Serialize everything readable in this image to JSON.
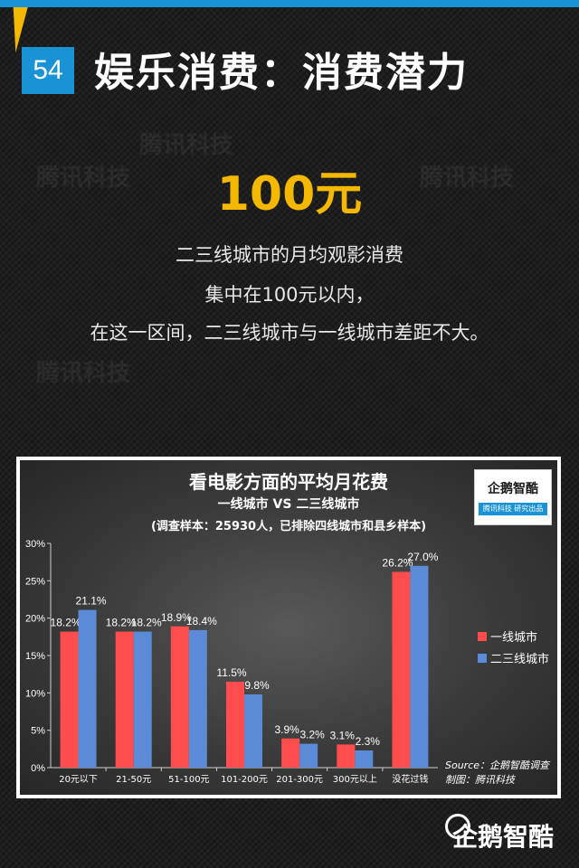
{
  "header": {
    "number": "54",
    "title": "娱乐消费：消费潜力"
  },
  "watermark": "腾讯科技",
  "highlight": "100元",
  "description": [
    "二三线城市的月均观影消费",
    "集中在100元以内，",
    "在这一区间，二三线城市与一线城市差距不大。"
  ],
  "logo": {
    "name": "企鹅智酷",
    "sub": "腾讯科技 研究出品"
  },
  "footer_logo": "企鹅智酷",
  "colors": {
    "accent_blue": "#1a93d6",
    "accent_yellow": "#f4b800",
    "series1": "#ff4d4d",
    "series2": "#5b8bd6"
  },
  "chart_data": {
    "type": "bar",
    "title": "看电影方面的平均月花费",
    "subtitle": "一线城市 VS 二三线城市",
    "note": "(调查样本：25930人，已排除四线城市和县乡样本)",
    "categories": [
      "20元以下",
      "21-50元",
      "51-100元",
      "101-200元",
      "201-300元",
      "300元以上",
      "没花过钱"
    ],
    "series": [
      {
        "name": "一线城市",
        "color": "#ff4d4d",
        "values": [
          18.2,
          18.2,
          18.9,
          11.5,
          3.9,
          3.1,
          26.2
        ],
        "labels": [
          "18.2%",
          "18.2%",
          "18.9%",
          "11.5%",
          "3.9%",
          "3.1%",
          "26.2%"
        ]
      },
      {
        "name": "二三线城市",
        "color": "#5b8bd6",
        "values": [
          21.1,
          18.2,
          18.4,
          9.8,
          3.2,
          2.3,
          27.0
        ],
        "labels": [
          "21.1%",
          "18.2%",
          "18.4%",
          "9.8%",
          "3.2%",
          "2.3%",
          "27.0%"
        ]
      }
    ],
    "ylim": [
      0,
      30
    ],
    "yticks": [
      "0%",
      "5%",
      "10%",
      "15%",
      "20%",
      "25%",
      "30%"
    ],
    "ytick_values": [
      0,
      5,
      10,
      15,
      20,
      25,
      30
    ],
    "legend_position": "right",
    "grid": false,
    "source": [
      "Source：企鹅智酷调查",
      "制图：腾讯科技"
    ]
  }
}
